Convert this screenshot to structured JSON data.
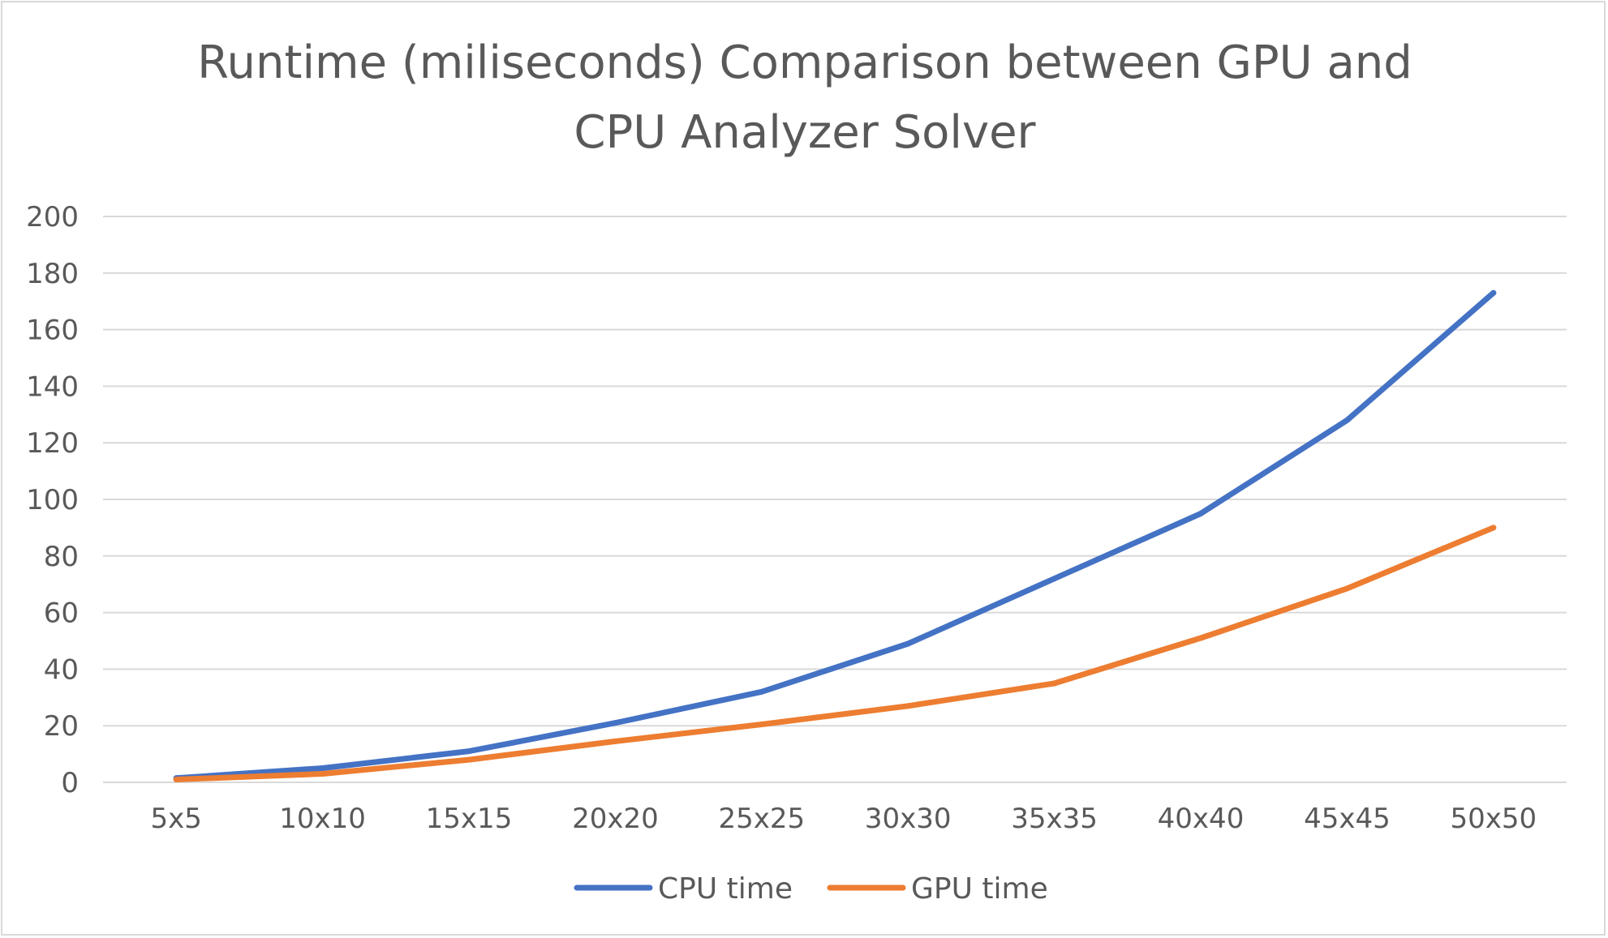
{
  "chart_data": {
    "type": "line",
    "title": [
      "Runtime (miliseconds) Comparison between GPU and",
      "CPU Analyzer Solver"
    ],
    "xlabel": "",
    "ylabel": "",
    "categories": [
      "5x5",
      "10x10",
      "15x15",
      "20x20",
      "25x25",
      "30x30",
      "35x35",
      "40x40",
      "45x45",
      "50x50"
    ],
    "ylim": [
      0,
      200
    ],
    "yticks": [
      0,
      20,
      40,
      60,
      80,
      100,
      120,
      140,
      160,
      180,
      200
    ],
    "grid": true,
    "legend_position": "bottom",
    "series": [
      {
        "name": "CPU time",
        "color": "#4472C4",
        "values": [
          1.5,
          5,
          11,
          21,
          32,
          49,
          72,
          95,
          128,
          173
        ]
      },
      {
        "name": "GPU time",
        "color": "#ED7D31",
        "values": [
          1,
          3,
          8,
          14.5,
          20.5,
          27,
          35,
          51,
          68.5,
          90
        ]
      }
    ]
  }
}
